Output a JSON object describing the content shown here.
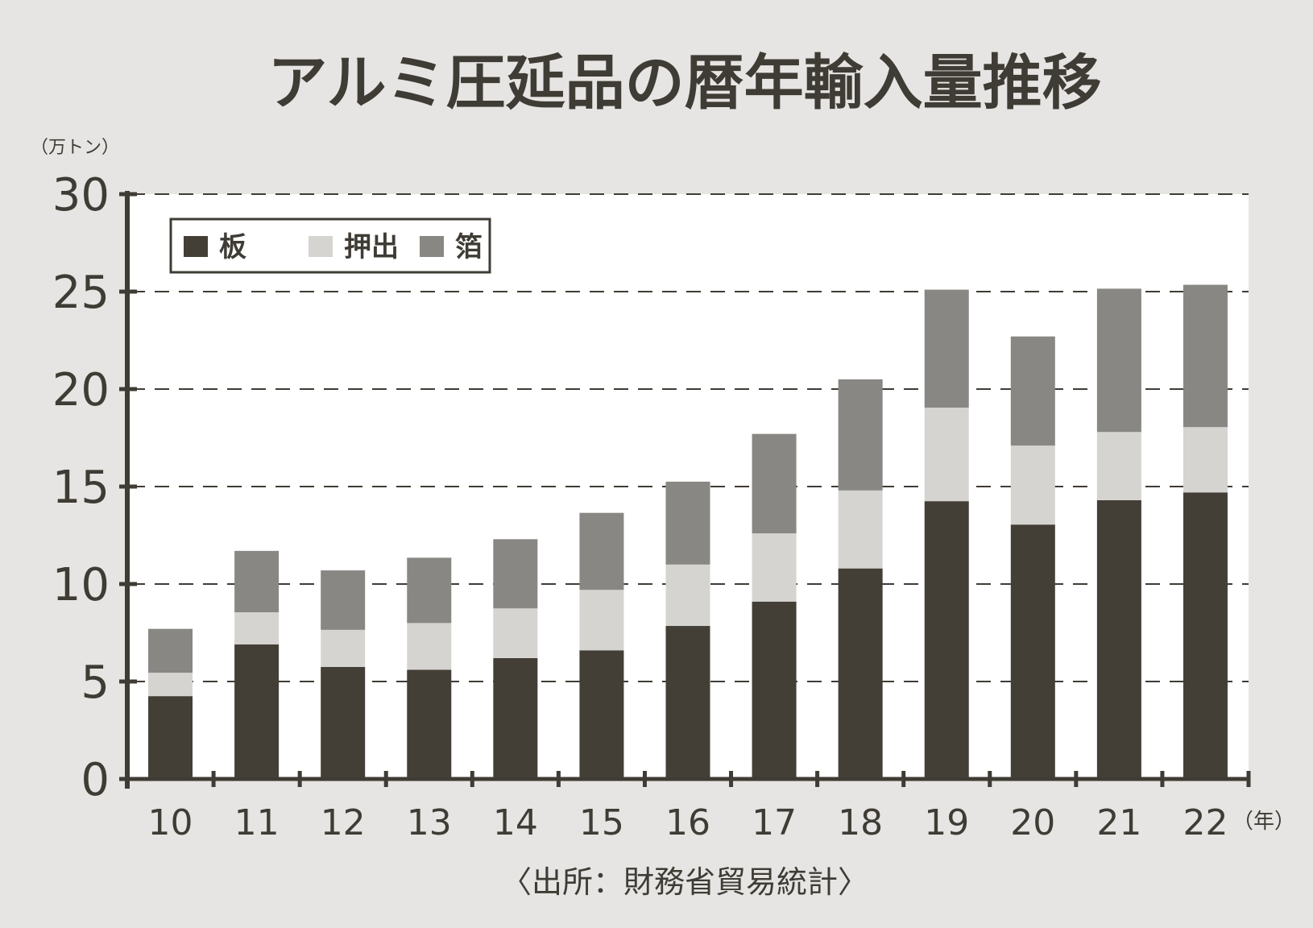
{
  "chart_data": {
    "type": "bar",
    "stacked": true,
    "title": "アルミ圧延品の暦年輸入量推移",
    "ylabel": "（万トン）",
    "xlabel": "（年）",
    "source": "〈出所：財務省貿易統計〉",
    "ylim": [
      0,
      30
    ],
    "yticks": [
      "0",
      "5",
      "10",
      "15",
      "20",
      "25",
      "30"
    ],
    "grid": "horizontal dashed",
    "legend_position": "top-left",
    "categories": [
      "10",
      "11",
      "12",
      "13",
      "14",
      "15",
      "16",
      "17",
      "18",
      "19",
      "20",
      "21",
      "22"
    ],
    "series": [
      {
        "name": "板",
        "color": "#433f36",
        "values": [
          4.25,
          6.9,
          5.75,
          5.6,
          6.2,
          6.6,
          7.85,
          9.1,
          10.8,
          14.25,
          13.05,
          14.3,
          14.7
        ]
      },
      {
        "name": "押出",
        "color": "#d5d4d1",
        "values": [
          1.2,
          1.65,
          1.9,
          2.4,
          2.55,
          3.1,
          3.15,
          3.5,
          4.0,
          4.8,
          4.05,
          3.5,
          3.35
        ]
      },
      {
        "name": "箔",
        "color": "#898783",
        "values": [
          2.25,
          3.15,
          3.05,
          3.35,
          3.55,
          3.95,
          4.25,
          5.1,
          5.7,
          6.05,
          5.6,
          7.35,
          7.3
        ]
      }
    ]
  }
}
